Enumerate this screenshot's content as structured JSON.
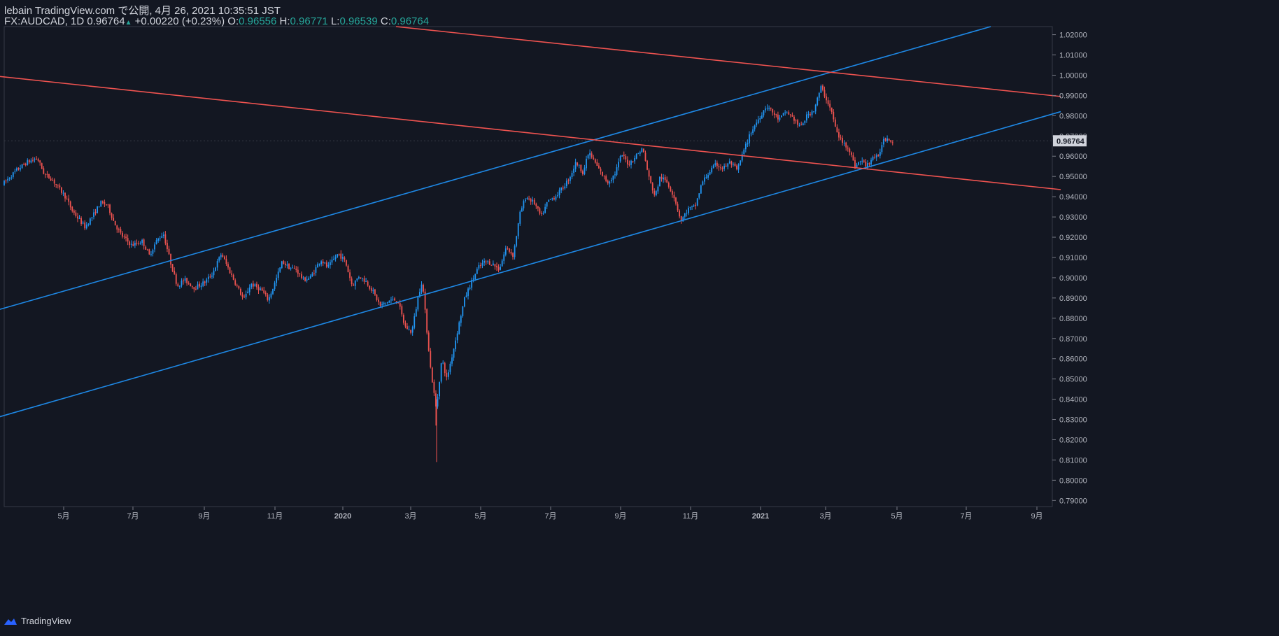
{
  "header": {
    "publisher": "lebain TradingView.com で公開, 4月 26, 2021 10:35:51 JST",
    "symbol": "FX:AUDCAD, 1D",
    "last": "0.96764",
    "change": "+0.00220 (+0.23%)",
    "o_label": "O:",
    "o": "0.96556",
    "h_label": "H:",
    "h": "0.96771",
    "l_label": "L:",
    "l": "0.96539",
    "c_label": "C:",
    "c": "0.96764"
  },
  "footer": {
    "brand": "TradingView"
  },
  "colors": {
    "bg": "#131722",
    "up": "#2196f3",
    "down": "#ef5350",
    "channel_up": "#1e88e5",
    "channel_down": "#ef5350",
    "text": "#d1d4dc",
    "accent": "#26a69a"
  },
  "chart_data": {
    "type": "candlestick",
    "symbol": "FX:AUDCAD",
    "timeframe": "1D",
    "ylim": [
      0.787,
      1.024
    ],
    "y_ticks": [
      "1.02000",
      "1.01000",
      "1.00000",
      "0.99000",
      "0.98000",
      "0.97000",
      "0.96000",
      "0.95000",
      "0.94000",
      "0.93000",
      "0.92000",
      "0.91000",
      "0.90000",
      "0.89000",
      "0.88000",
      "0.87000",
      "0.86000",
      "0.85000",
      "0.84000",
      "0.83000",
      "0.82000",
      "0.81000",
      "0.80000",
      "0.79000"
    ],
    "x_ticks": [
      "5月",
      "7月",
      "9月",
      "11月",
      "2020",
      "3月",
      "5月",
      "7月",
      "9月",
      "11月",
      "2021",
      "3月",
      "5月",
      "7月",
      "9月"
    ],
    "last_price_label": "0.96764",
    "anchors": [
      [
        0,
        0.946
      ],
      [
        20,
        0.953
      ],
      [
        35,
        0.957
      ],
      [
        50,
        0.959
      ],
      [
        60,
        0.951
      ],
      [
        70,
        0.949
      ],
      [
        90,
        0.94
      ],
      [
        100,
        0.933
      ],
      [
        118,
        0.925
      ],
      [
        130,
        0.931
      ],
      [
        140,
        0.937
      ],
      [
        150,
        0.936
      ],
      [
        160,
        0.927
      ],
      [
        170,
        0.921
      ],
      [
        185,
        0.916
      ],
      [
        200,
        0.918
      ],
      [
        210,
        0.911
      ],
      [
        220,
        0.918
      ],
      [
        230,
        0.922
      ],
      [
        240,
        0.908
      ],
      [
        250,
        0.896
      ],
      [
        260,
        0.899
      ],
      [
        275,
        0.895
      ],
      [
        290,
        0.898
      ],
      [
        300,
        0.902
      ],
      [
        313,
        0.912
      ],
      [
        325,
        0.903
      ],
      [
        335,
        0.896
      ],
      [
        345,
        0.889
      ],
      [
        355,
        0.897
      ],
      [
        370,
        0.894
      ],
      [
        380,
        0.889
      ],
      [
        390,
        0.898
      ],
      [
        400,
        0.908
      ],
      [
        410,
        0.905
      ],
      [
        420,
        0.904
      ],
      [
        430,
        0.899
      ],
      [
        440,
        0.9
      ],
      [
        455,
        0.909
      ],
      [
        465,
        0.905
      ],
      [
        480,
        0.912
      ],
      [
        490,
        0.908
      ],
      [
        500,
        0.896
      ],
      [
        510,
        0.901
      ],
      [
        520,
        0.898
      ],
      [
        530,
        0.893
      ],
      [
        540,
        0.886
      ],
      [
        555,
        0.889
      ],
      [
        565,
        0.889
      ],
      [
        575,
        0.876
      ],
      [
        585,
        0.873
      ],
      [
        595,
        0.892
      ],
      [
        600,
        0.899
      ],
      [
        605,
        0.88
      ],
      [
        612,
        0.855
      ],
      [
        620,
        0.835
      ],
      [
        628,
        0.86
      ],
      [
        635,
        0.85
      ],
      [
        645,
        0.865
      ],
      [
        655,
        0.881
      ],
      [
        660,
        0.889
      ],
      [
        668,
        0.896
      ],
      [
        680,
        0.905
      ],
      [
        690,
        0.908
      ],
      [
        700,
        0.907
      ],
      [
        710,
        0.904
      ],
      [
        720,
        0.915
      ],
      [
        730,
        0.911
      ],
      [
        740,
        0.932
      ],
      [
        748,
        0.94
      ],
      [
        760,
        0.937
      ],
      [
        770,
        0.93
      ],
      [
        780,
        0.938
      ],
      [
        790,
        0.94
      ],
      [
        800,
        0.944
      ],
      [
        810,
        0.949
      ],
      [
        820,
        0.957
      ],
      [
        830,
        0.952
      ],
      [
        838,
        0.962
      ],
      [
        845,
        0.958
      ],
      [
        855,
        0.952
      ],
      [
        865,
        0.947
      ],
      [
        875,
        0.951
      ],
      [
        885,
        0.961
      ],
      [
        895,
        0.956
      ],
      [
        905,
        0.96
      ],
      [
        915,
        0.964
      ],
      [
        925,
        0.948
      ],
      [
        933,
        0.94
      ],
      [
        940,
        0.95
      ],
      [
        950,
        0.947
      ],
      [
        960,
        0.94
      ],
      [
        970,
        0.928
      ],
      [
        980,
        0.934
      ],
      [
        990,
        0.935
      ],
      [
        1000,
        0.947
      ],
      [
        1010,
        0.952
      ],
      [
        1020,
        0.956
      ],
      [
        1030,
        0.954
      ],
      [
        1040,
        0.957
      ],
      [
        1050,
        0.953
      ],
      [
        1060,
        0.963
      ],
      [
        1070,
        0.972
      ],
      [
        1080,
        0.978
      ],
      [
        1092,
        0.985
      ],
      [
        1100,
        0.982
      ],
      [
        1110,
        0.978
      ],
      [
        1120,
        0.982
      ],
      [
        1130,
        0.979
      ],
      [
        1140,
        0.974
      ],
      [
        1150,
        0.98
      ],
      [
        1160,
        0.983
      ],
      [
        1170,
        0.994
      ],
      [
        1178,
        0.988
      ],
      [
        1185,
        0.982
      ],
      [
        1192,
        0.972
      ],
      [
        1200,
        0.967
      ],
      [
        1210,
        0.964
      ],
      [
        1218,
        0.955
      ],
      [
        1228,
        0.958
      ],
      [
        1235,
        0.955
      ],
      [
        1245,
        0.96
      ],
      [
        1252,
        0.959
      ],
      [
        1258,
        0.968
      ],
      [
        1265,
        0.969
      ],
      [
        1272,
        0.9676
      ]
    ],
    "spikes": [
      [
        607,
        0.868,
        "down"
      ],
      [
        617,
        0.827,
        "down"
      ],
      [
        618,
        0.809,
        "down"
      ]
    ],
    "channels": [
      {
        "color": "#1e88e5",
        "points": [
          [
            -10,
            0.884
          ],
          [
            1410,
            1.024
          ]
        ]
      },
      {
        "color": "#1e88e5",
        "points": [
          [
            -10,
            0.831
          ],
          [
            1510,
            0.982
          ]
        ]
      },
      {
        "color": "#ef5350",
        "points": [
          [
            -10,
            0.9995
          ],
          [
            1510,
            0.9435
          ]
        ]
      },
      {
        "color": "#ef5350",
        "points": [
          [
            560,
            1.024
          ],
          [
            1510,
            0.9895
          ]
        ]
      }
    ]
  }
}
